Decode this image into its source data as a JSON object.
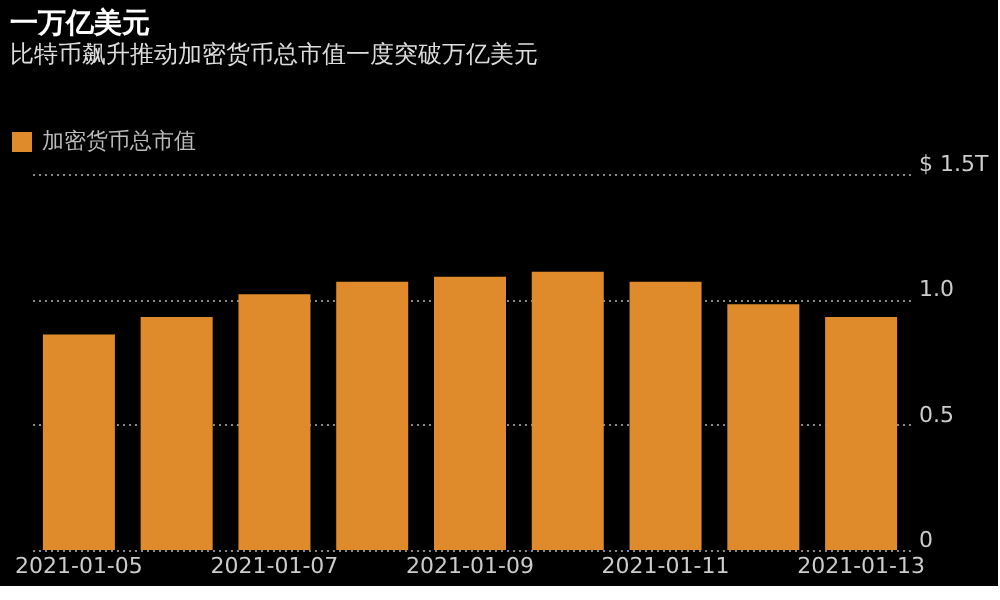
{
  "chart_data": {
    "type": "bar",
    "title": "一万亿美元",
    "subtitle": "比特币飙升推动加密货币总市值一度突破万亿美元",
    "categories": [
      "2021-01-05",
      null,
      "2021-01-07",
      null,
      "2021-01-09",
      null,
      "2021-01-11",
      null,
      "2021-01-13"
    ],
    "series": [
      {
        "name": "加密货币总市值",
        "color": "#e08b2b",
        "values": [
          0.86,
          0.93,
          1.02,
          1.07,
          1.09,
          1.11,
          1.07,
          0.98,
          0.93
        ]
      }
    ],
    "ylim": [
      0,
      1.5
    ],
    "yticks": [
      0,
      0.5,
      {
        "value": 1.0,
        "label": "1.0"
      },
      {
        "value": 1.5,
        "label": "$ 1.5T"
      }
    ],
    "grid": "y",
    "legend": "top left"
  }
}
